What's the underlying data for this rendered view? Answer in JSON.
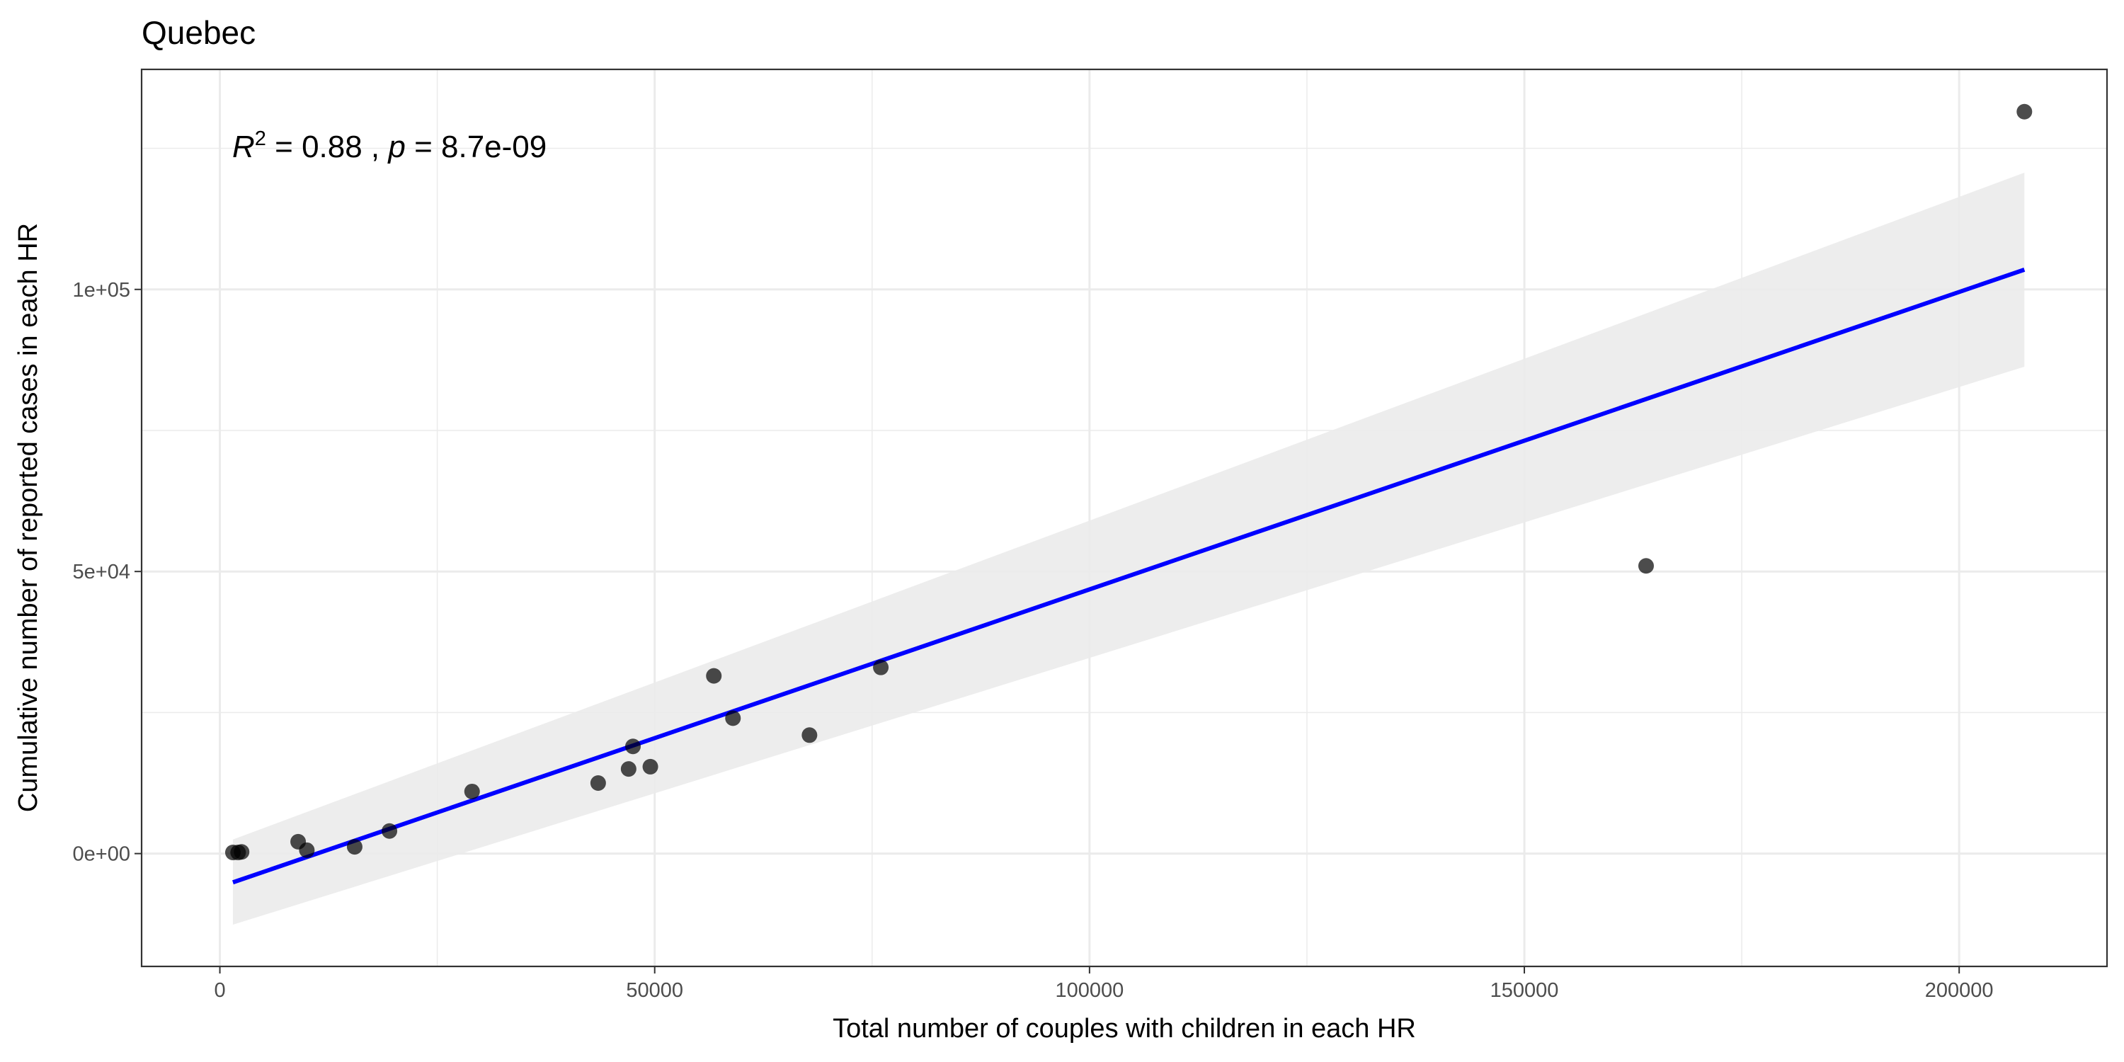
{
  "chart_data": {
    "type": "scatter",
    "title": "Quebec",
    "xlabel": "Total number of couples with children in each HR",
    "ylabel": "Cumulative number of reported cases in each HR",
    "xlim": [
      -9000,
      217000
    ],
    "ylim": [
      -20000,
      139000
    ],
    "x_ticks": [
      0,
      50000,
      100000,
      150000,
      200000
    ],
    "x_tick_labels": [
      "0",
      "50000",
      "100000",
      "150000",
      "200000"
    ],
    "y_ticks": [
      0,
      50000,
      100000
    ],
    "y_tick_labels": [
      "0e+00",
      "5e+04",
      "1e+05"
    ],
    "grid": true,
    "annotation": {
      "r_symbol": "R",
      "r_exponent": "2",
      "r_value": " = 0.88 , ",
      "p_symbol": "p",
      "p_value": " = 8.7e-09"
    },
    "points": [
      {
        "x": 1500,
        "y": 200
      },
      {
        "x": 2100,
        "y": 200
      },
      {
        "x": 2500,
        "y": 300
      },
      {
        "x": 9000,
        "y": 2100
      },
      {
        "x": 10000,
        "y": 600
      },
      {
        "x": 15500,
        "y": 1200
      },
      {
        "x": 19500,
        "y": 4000
      },
      {
        "x": 29000,
        "y": 11000
      },
      {
        "x": 43500,
        "y": 12500
      },
      {
        "x": 47000,
        "y": 15000
      },
      {
        "x": 47500,
        "y": 19000
      },
      {
        "x": 49500,
        "y": 15400
      },
      {
        "x": 56800,
        "y": 31500
      },
      {
        "x": 59000,
        "y": 24000
      },
      {
        "x": 67800,
        "y": 21000
      },
      {
        "x": 76000,
        "y": 33000
      },
      {
        "x": 164000,
        "y": 51000
      },
      {
        "x": 207500,
        "y": 131500
      }
    ],
    "fit_line": {
      "color": "#0000ff",
      "x": [
        1500,
        207500
      ],
      "y": [
        -5100,
        103500
      ]
    },
    "confidence_band": {
      "color": "#ebebeb",
      "x": [
        1500,
        207500
      ],
      "upper": [
        2500,
        120700
      ],
      "lower": [
        -12600,
        86300
      ]
    },
    "point_color": "#000000"
  }
}
